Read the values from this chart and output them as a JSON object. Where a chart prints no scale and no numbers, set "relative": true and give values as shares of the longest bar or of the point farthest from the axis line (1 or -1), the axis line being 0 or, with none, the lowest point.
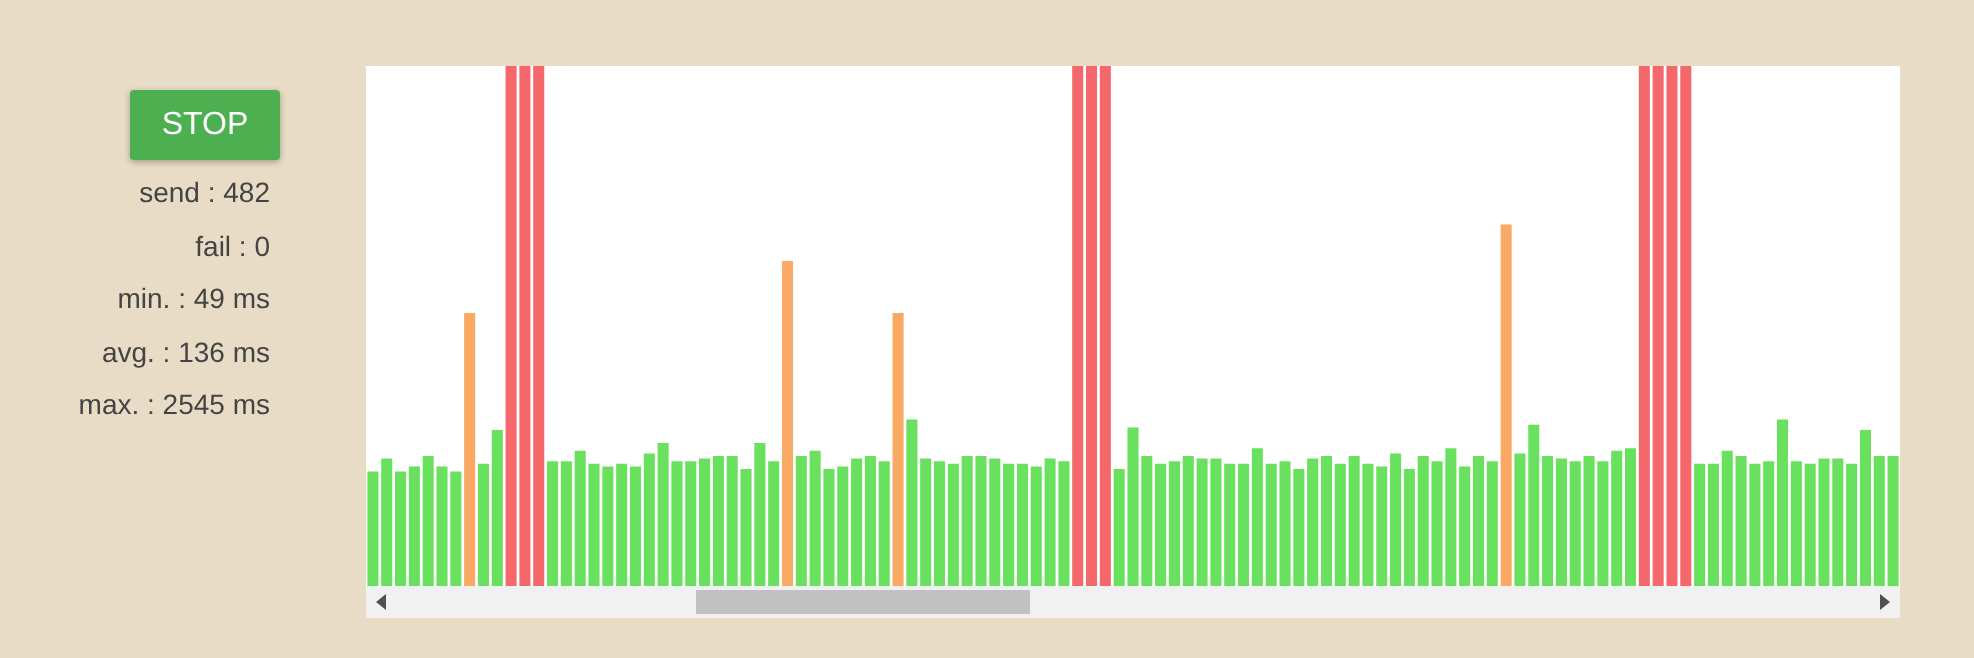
{
  "chart_data": {
    "type": "bar",
    "relative": true,
    "categories": [
      null,
      null,
      null,
      null,
      null,
      null,
      null,
      null,
      null,
      null,
      null,
      null,
      null,
      null,
      null,
      null,
      null,
      null,
      null,
      null,
      null,
      null,
      null,
      null,
      null,
      null,
      null,
      null,
      null,
      null,
      null,
      null,
      null,
      null,
      null,
      null,
      null,
      null,
      null,
      null,
      null,
      null,
      null,
      null,
      null,
      null,
      null,
      null,
      null,
      null,
      null,
      null,
      null,
      null,
      null,
      null,
      null,
      null,
      null,
      null,
      null,
      null,
      null,
      null,
      null,
      null,
      null,
      null,
      null,
      null,
      null,
      null,
      null,
      null,
      null,
      null,
      null,
      null,
      null,
      null,
      null,
      null,
      null,
      null,
      null,
      null,
      null,
      null,
      null,
      null,
      null,
      null,
      null,
      null,
      null,
      null,
      null,
      null,
      null,
      null,
      null,
      null,
      null,
      null,
      null,
      null,
      null,
      null,
      null,
      null,
      null
    ],
    "values": [
      0.22,
      0.245,
      0.22,
      0.23,
      0.25,
      0.23,
      0.22,
      0.525,
      0.235,
      0.3,
      1,
      1,
      1,
      0.24,
      0.24,
      0.26,
      0.235,
      0.23,
      0.235,
      0.23,
      0.255,
      0.275,
      0.24,
      0.24,
      0.245,
      0.25,
      0.25,
      0.225,
      0.275,
      0.24,
      0.625,
      0.25,
      0.26,
      0.225,
      0.23,
      0.245,
      0.25,
      0.24,
      0.525,
      0.32,
      0.245,
      0.24,
      0.235,
      0.25,
      0.25,
      0.245,
      0.235,
      0.235,
      0.23,
      0.245,
      0.24,
      1,
      1,
      1,
      0.225,
      0.305,
      0.25,
      0.235,
      0.24,
      0.25,
      0.245,
      0.245,
      0.235,
      0.235,
      0.265,
      0.235,
      0.24,
      0.225,
      0.245,
      0.25,
      0.235,
      0.25,
      0.235,
      0.23,
      0.255,
      0.225,
      0.25,
      0.24,
      0.265,
      0.23,
      0.25,
      0.24,
      0.695,
      0.255,
      0.31,
      0.25,
      0.245,
      0.24,
      0.25,
      0.24,
      0.26,
      0.265,
      1,
      1,
      1,
      1,
      0.235,
      0.235,
      0.26,
      0.25,
      0.235,
      0.24,
      0.32,
      0.24,
      0.235,
      0.245,
      0.245,
      0.235,
      0.3,
      0.25,
      0.25
    ],
    "colors": [
      "#6ae05f",
      "#6ae05f",
      "#6ae05f",
      "#6ae05f",
      "#6ae05f",
      "#6ae05f",
      "#6ae05f",
      "#f9a963",
      "#6ae05f",
      "#6ae05f",
      "#f4676a",
      "#f4676a",
      "#f4676a",
      "#6ae05f",
      "#6ae05f",
      "#6ae05f",
      "#6ae05f",
      "#6ae05f",
      "#6ae05f",
      "#6ae05f",
      "#6ae05f",
      "#6ae05f",
      "#6ae05f",
      "#6ae05f",
      "#6ae05f",
      "#6ae05f",
      "#6ae05f",
      "#6ae05f",
      "#6ae05f",
      "#6ae05f",
      "#f9a963",
      "#6ae05f",
      "#6ae05f",
      "#6ae05f",
      "#6ae05f",
      "#6ae05f",
      "#6ae05f",
      "#6ae05f",
      "#f9a963",
      "#6ae05f",
      "#6ae05f",
      "#6ae05f",
      "#6ae05f",
      "#6ae05f",
      "#6ae05f",
      "#6ae05f",
      "#6ae05f",
      "#6ae05f",
      "#6ae05f",
      "#6ae05f",
      "#6ae05f",
      "#f4676a",
      "#f4676a",
      "#f4676a",
      "#6ae05f",
      "#6ae05f",
      "#6ae05f",
      "#6ae05f",
      "#6ae05f",
      "#6ae05f",
      "#6ae05f",
      "#6ae05f",
      "#6ae05f",
      "#6ae05f",
      "#6ae05f",
      "#6ae05f",
      "#6ae05f",
      "#6ae05f",
      "#6ae05f",
      "#6ae05f",
      "#6ae05f",
      "#6ae05f",
      "#6ae05f",
      "#6ae05f",
      "#6ae05f",
      "#6ae05f",
      "#6ae05f",
      "#6ae05f",
      "#6ae05f",
      "#6ae05f",
      "#6ae05f",
      "#6ae05f",
      "#f9a963",
      "#6ae05f",
      "#6ae05f",
      "#6ae05f",
      "#6ae05f",
      "#6ae05f",
      "#6ae05f",
      "#6ae05f",
      "#6ae05f",
      "#6ae05f",
      "#f4676a",
      "#f4676a",
      "#f4676a",
      "#f4676a",
      "#6ae05f",
      "#6ae05f",
      "#6ae05f",
      "#6ae05f",
      "#6ae05f",
      "#6ae05f",
      "#6ae05f",
      "#6ae05f",
      "#6ae05f",
      "#6ae05f",
      "#6ae05f",
      "#6ae05f",
      "#6ae05f",
      "#6ae05f",
      "#6ae05f"
    ],
    "annotations": [
      "STOP",
      "send : 482",
      "fail : 0",
      "min. : 49 ms",
      "avg. : 136 ms",
      "max. : 2545 ms"
    ]
  }
}
